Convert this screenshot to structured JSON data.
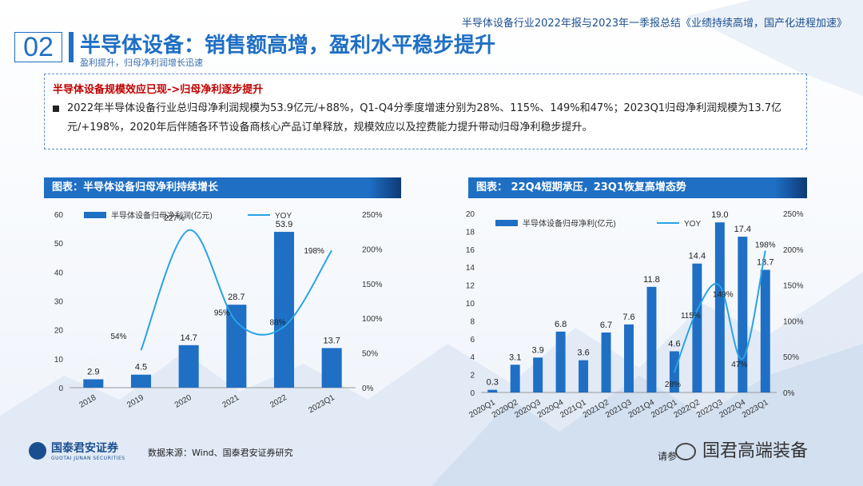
{
  "header": {
    "top_title": "半导体设备行业2022年报与2023年一季报总结《业绩持续高增，国产化进程加速》",
    "section_number": "02",
    "main_title": "半导体设备：销售额高增，盈利水平稳步提升",
    "sub_title": "盈利提升，归母净利润增长迅速"
  },
  "info": {
    "headline": "半导体设备规模效应已现->归母净利逐步提升",
    "text": "2022年半导体设备行业总归母净利润规模为53.9亿元/+88%，Q1-Q4分季度增速分别为28%、115%、149%和47%；2023Q1归母净利润规模为13.7亿元/+198%，2020年后伴随各环节设备商核心产品订单释放，规模效应以及控费能力提升带动归母净利稳步提升。"
  },
  "panels": {
    "left_title": "图表：半导体设备归母净利持续增长",
    "right_title": "图表： 22Q4短期承压，23Q1恢复高增态势"
  },
  "footer": {
    "logo_cn": "国泰君安证券",
    "logo_en": "GUOTAI JUNAN SECURITIES",
    "source": "数据来源：Wind、国泰君安证券研究",
    "see_more": "请参",
    "wechat": "国君高端装备"
  },
  "colors": {
    "bar": "#1f6fc4",
    "line": "#29a3e6",
    "accent": "#1f6fc4",
    "red": "#c00000"
  },
  "chart_data": [
    {
      "type": "bar",
      "categories": [
        "2018",
        "2019",
        "2020",
        "2021",
        "2022",
        "2023Q1"
      ],
      "series": [
        {
          "name": "半导体设备归母净利润(亿元)",
          "type": "bar",
          "axis": "left",
          "values": [
            2.9,
            4.5,
            14.7,
            28.7,
            53.9,
            13.7
          ],
          "labels": [
            "2.9",
            "4.5",
            "14.7",
            "28.7",
            "53.9",
            "13.7"
          ]
        },
        {
          "name": "YOY",
          "type": "line",
          "axis": "right",
          "values": [
            null,
            54,
            227,
            95,
            88,
            198
          ],
          "labels": [
            "",
            "54%",
            "227%",
            "95%",
            "88%",
            "198%"
          ]
        }
      ],
      "ylim": [
        0,
        60
      ],
      "yticks": [
        "0",
        "10",
        "20",
        "30",
        "40",
        "50",
        "60"
      ],
      "y2lim": [
        0,
        250
      ],
      "y2ticks": [
        "0%",
        "50%",
        "100%",
        "150%",
        "200%",
        "250%"
      ],
      "legend": "top"
    },
    {
      "type": "bar",
      "categories": [
        "2020Q1",
        "2020Q2",
        "2020Q3",
        "2020Q4",
        "2021Q1",
        "2021Q2",
        "2021Q3",
        "2021Q4",
        "2022Q1",
        "2022Q2",
        "2022Q3",
        "2022Q4",
        "2023Q1"
      ],
      "series": [
        {
          "name": "半导体设备归母净利(亿元)",
          "type": "bar",
          "axis": "left",
          "values": [
            0.3,
            3.1,
            3.9,
            6.8,
            3.6,
            6.7,
            7.6,
            11.8,
            4.6,
            14.4,
            19.0,
            17.4,
            13.7
          ],
          "labels": [
            "0.3",
            "3.1",
            "3.9",
            "6.8",
            "3.6",
            "6.7",
            "7.6",
            "11.8",
            "4.6",
            "14.4",
            "19.0",
            "17.4",
            "13.7"
          ]
        },
        {
          "name": "YOY",
          "type": "line",
          "axis": "right",
          "values": [
            null,
            null,
            null,
            null,
            null,
            null,
            null,
            null,
            28,
            115,
            149,
            47,
            198
          ],
          "labels": [
            "",
            "",
            "",
            "",
            "",
            "",
            "",
            "",
            "28%",
            "115%",
            "149%",
            "47%",
            "198%"
          ]
        }
      ],
      "ylim": [
        0,
        20
      ],
      "yticks": [
        "0",
        "2",
        "4",
        "6",
        "8",
        "10",
        "12",
        "14",
        "16",
        "18",
        "20"
      ],
      "y2lim": [
        0,
        250
      ],
      "y2ticks": [
        "0%",
        "50%",
        "100%",
        "150%",
        "200%",
        "250%"
      ],
      "legend": "top"
    }
  ]
}
